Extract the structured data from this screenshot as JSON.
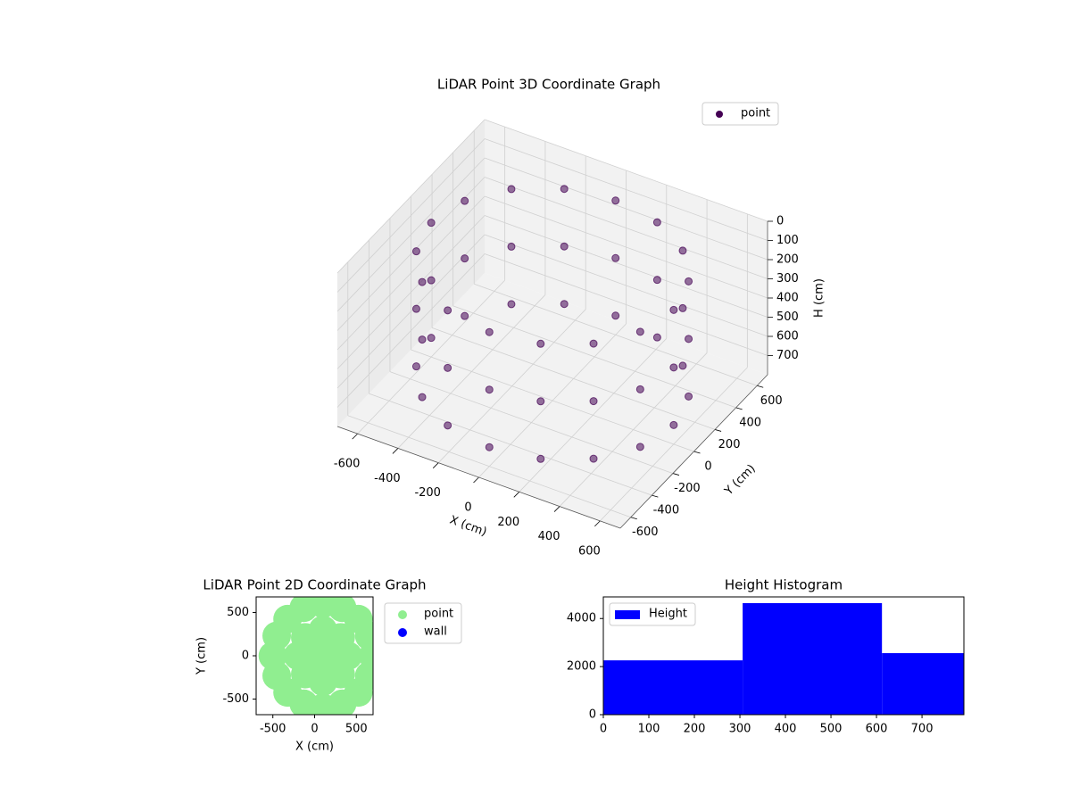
{
  "chart_data": [
    {
      "type": "scatter3d",
      "title": "LiDAR Point 3D Coordinate Graph",
      "xlabel": "X (cm)",
      "ylabel": "Y (cm)",
      "zlabel": "H (cm)",
      "xlim": [
        -700,
        700
      ],
      "ylim": [
        -700,
        700
      ],
      "zlim": [
        800,
        0
      ],
      "xticks": [
        -600,
        -400,
        -200,
        0,
        200,
        400,
        600
      ],
      "yticks": [
        -600,
        -400,
        -200,
        0,
        200,
        400,
        600
      ],
      "zticks": [
        0,
        100,
        200,
        300,
        400,
        500,
        600,
        700
      ],
      "grid": true,
      "legend": "upper right",
      "series": [
        {
          "name": "point",
          "color": "#440154",
          "x": [
            600,
            554,
            424,
            230,
            0,
            -230,
            -424,
            -554,
            -600,
            -554,
            -424,
            -230,
            0,
            230,
            424,
            554,
            600,
            554,
            424,
            230,
            0,
            -230,
            -424,
            -554,
            -600,
            -554,
            -424,
            -230,
            0,
            230,
            424,
            554,
            600,
            554,
            424,
            230,
            0,
            -230,
            -424,
            -554,
            -600,
            -554,
            -424,
            -230,
            0,
            230,
            424,
            554
          ],
          "y": [
            0,
            230,
            424,
            554,
            600,
            554,
            424,
            230,
            0,
            -230,
            -424,
            -554,
            -600,
            -554,
            -424,
            -230,
            0,
            230,
            424,
            554,
            600,
            554,
            424,
            230,
            0,
            -230,
            -424,
            -554,
            -600,
            -554,
            -424,
            -230,
            0,
            230,
            424,
            554,
            600,
            554,
            424,
            230,
            0,
            -230,
            -424,
            -554,
            -600,
            -554,
            -424,
            -230
          ],
          "h": [
            100,
            100,
            100,
            100,
            100,
            100,
            100,
            100,
            100,
            100,
            100,
            100,
            100,
            100,
            100,
            100,
            400,
            400,
            400,
            400,
            400,
            400,
            400,
            400,
            400,
            400,
            400,
            400,
            400,
            400,
            400,
            400,
            700,
            700,
            700,
            700,
            700,
            700,
            700,
            700,
            700,
            700,
            700,
            700,
            700,
            700,
            700,
            700
          ]
        }
      ]
    },
    {
      "type": "scatter",
      "title": "LiDAR Point 2D Coordinate Graph",
      "xlabel": "X (cm)",
      "ylabel": "Y (cm)",
      "xlim": [
        -700,
        700
      ],
      "ylim": [
        -680,
        680
      ],
      "xticks": [
        -500,
        0,
        500
      ],
      "yticks": [
        -500,
        0,
        500
      ],
      "legend": "outside right",
      "series": [
        {
          "name": "point",
          "color": "#90ee90",
          "x": [
            700,
            654,
            524,
            330,
            100,
            -130,
            -324,
            -454,
            -500,
            -454,
            -324,
            -130,
            100,
            330,
            524,
            654,
            400,
            312,
            100,
            -112,
            -200,
            -112,
            100,
            312,
            100
          ],
          "y": [
            0,
            230,
            424,
            554,
            600,
            554,
            424,
            230,
            0,
            -230,
            -424,
            -554,
            -600,
            -554,
            -424,
            -230,
            0,
            212,
            300,
            212,
            0,
            -212,
            -300,
            -212,
            0
          ]
        },
        {
          "name": "wall",
          "color": "#0000ff",
          "x": [],
          "y": []
        }
      ]
    },
    {
      "type": "histogram",
      "title": "Height Histogram",
      "bins": [
        0,
        306,
        612,
        918
      ],
      "values": [
        2260,
        4640,
        2560
      ],
      "xlim": [
        0,
        792
      ],
      "ylim": [
        0,
        4900
      ],
      "xticks": [
        0,
        100,
        200,
        300,
        400,
        500,
        600,
        700
      ],
      "yticks": [
        0,
        2000,
        4000
      ],
      "legend": "upper left",
      "series_name": "Height",
      "color": "#0000ff"
    }
  ]
}
